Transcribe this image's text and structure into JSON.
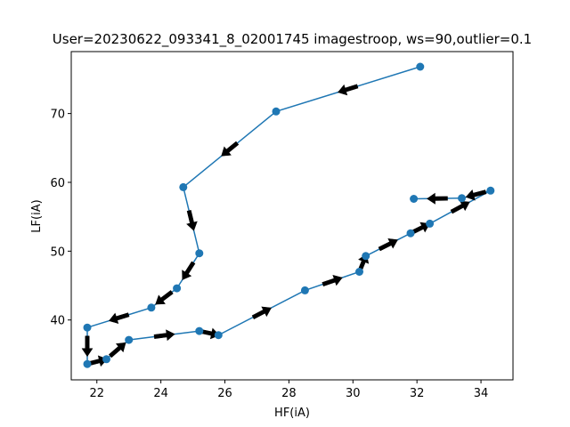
{
  "chart_data": {
    "type": "line",
    "title": "User=20230622_093341_8_02001745 imagestroop, ws=90,outlier=0.1",
    "xlabel": "HF(iA)",
    "ylabel": "LF(iA)",
    "xlim": [
      21.2,
      35.0
    ],
    "ylim": [
      31.3,
      79.0
    ],
    "xticks": [
      22,
      24,
      26,
      28,
      30,
      32,
      34
    ],
    "yticks": [
      40,
      50,
      60,
      70
    ],
    "grid": false,
    "legend": "none",
    "series": [
      {
        "color": "#1f77b4",
        "marker": "circle",
        "arrows": true,
        "arrow_color": "#000000",
        "x": [
          32.1,
          27.6,
          24.7,
          25.2,
          24.5,
          23.7,
          21.7,
          21.7,
          22.3,
          23.0,
          25.2,
          25.8,
          28.5,
          30.2,
          30.4,
          31.8,
          32.4,
          34.3,
          33.4,
          31.9
        ],
        "y": [
          76.8,
          70.3,
          59.3,
          49.7,
          44.6,
          41.8,
          38.9,
          33.6,
          34.3,
          37.1,
          38.4,
          37.8,
          44.3,
          47.0,
          49.3,
          52.6,
          54.0,
          58.8,
          57.7,
          57.6
        ]
      }
    ]
  }
}
